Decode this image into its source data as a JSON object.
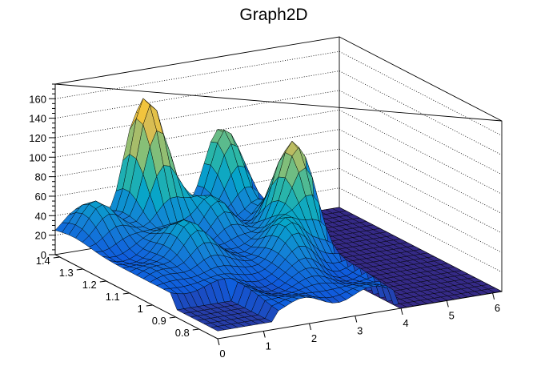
{
  "chart_data": {
    "type": "surface3d",
    "title": "Graph2D",
    "xlabel": "",
    "ylabel": "",
    "zlabel": "",
    "xlim": [
      0,
      6.2
    ],
    "ylim": [
      0.72,
      1.42
    ],
    "zlim": [
      0,
      175
    ],
    "x_ticks": [
      "0",
      "1",
      "2",
      "3",
      "4",
      "5",
      "6"
    ],
    "y_ticks": [
      "0.8",
      "0.9",
      "1",
      "1.1",
      "1.2",
      "1.3",
      "1.4"
    ],
    "z_ticks": [
      "0",
      "20",
      "40",
      "60",
      "80",
      "100",
      "120",
      "140",
      "160"
    ],
    "grid": true,
    "colormap": [
      "#352a87",
      "#0f5cdd",
      "#1481d6",
      "#06a4ca",
      "#2eb7a4",
      "#87bf77",
      "#d1bb59",
      "#fec832",
      "#f9fb0e"
    ],
    "surface_features": [
      {
        "x": 0.6,
        "y": 1.34,
        "z": 60
      },
      {
        "x": 1.3,
        "y": 1.1,
        "z": 70
      },
      {
        "x": 1.8,
        "y": 1.38,
        "z": 160
      },
      {
        "x": 2.5,
        "y": 1.24,
        "z": 60
      },
      {
        "x": 2.9,
        "y": 1.0,
        "z": 70
      },
      {
        "x": 3.6,
        "y": 1.4,
        "z": 110
      },
      {
        "x": 3.7,
        "y": 1.12,
        "z": 135
      }
    ]
  }
}
